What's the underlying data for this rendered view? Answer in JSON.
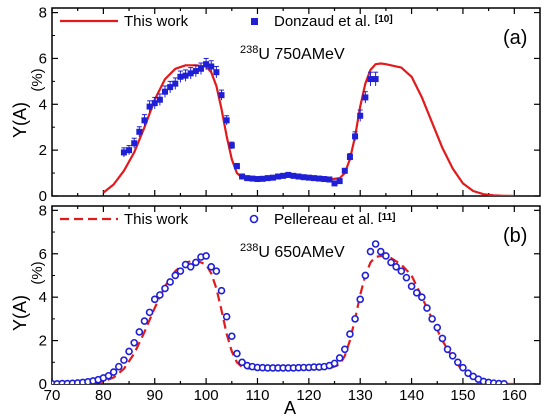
{
  "chart_data": [
    {
      "type": "scatter",
      "panel_label": "(a)",
      "nucleus_mass": "238",
      "nucleus_rest": "U 750AMeV",
      "xlabel": "A",
      "ylabel": "Y(A)",
      "ylabel_unit": "(%)",
      "xlim": [
        70,
        165
      ],
      "ylim": [
        0,
        8.2
      ],
      "yticks": [
        "0",
        "2",
        "4",
        "6",
        "8"
      ],
      "xticks": [],
      "legend_position": "top",
      "series": [
        {
          "name": "This work",
          "kind": "line",
          "style": "solid",
          "color": "#e31a1c",
          "x": [
            80,
            82,
            84,
            86,
            88,
            90,
            92,
            94,
            96,
            98,
            100,
            101,
            102,
            103,
            104,
            105,
            106,
            107,
            108,
            110,
            112,
            114,
            116,
            118,
            120,
            122,
            124,
            126,
            127,
            128,
            129,
            130,
            131,
            132,
            133,
            134,
            135,
            136,
            138,
            140,
            142,
            144,
            146,
            148,
            150,
            152,
            154,
            156,
            158,
            160
          ],
          "y": [
            0.15,
            0.5,
            1.1,
            1.9,
            3.0,
            4.2,
            5.1,
            5.55,
            5.7,
            5.7,
            5.65,
            5.4,
            4.8,
            3.8,
            2.6,
            1.6,
            1.0,
            0.8,
            0.72,
            0.7,
            0.72,
            0.78,
            0.85,
            0.82,
            0.78,
            0.74,
            0.72,
            0.78,
            1.0,
            1.6,
            2.6,
            3.9,
            4.9,
            5.5,
            5.75,
            5.78,
            5.75,
            5.7,
            5.6,
            5.2,
            4.3,
            3.2,
            2.1,
            1.2,
            0.55,
            0.22,
            0.08,
            0.03,
            0.01,
            0.0
          ]
        },
        {
          "name": "Donzaud et al.",
          "name_ref": "[10]",
          "kind": "points",
          "marker": "square",
          "color": "#1f1fd6",
          "x": [
            84,
            85,
            86,
            87,
            88,
            89,
            90,
            91,
            92,
            93,
            94,
            95,
            96,
            97,
            98,
            99,
            100,
            101,
            102,
            103,
            104,
            105,
            106,
            107,
            108,
            109,
            110,
            111,
            112,
            113,
            114,
            115,
            116,
            117,
            118,
            119,
            120,
            121,
            122,
            123,
            124,
            125,
            126,
            127,
            128,
            129,
            130,
            131,
            132,
            133
          ],
          "y": [
            1.9,
            2.0,
            2.3,
            2.8,
            3.3,
            3.9,
            4.05,
            4.2,
            4.55,
            4.75,
            4.9,
            5.2,
            5.25,
            5.35,
            5.45,
            5.55,
            5.75,
            5.65,
            5.4,
            4.4,
            3.3,
            2.2,
            1.3,
            0.85,
            0.78,
            0.76,
            0.74,
            0.75,
            0.78,
            0.8,
            0.85,
            0.88,
            0.92,
            0.88,
            0.85,
            0.82,
            0.8,
            0.78,
            0.76,
            0.74,
            0.72,
            0.55,
            0.65,
            1.1,
            1.7,
            2.6,
            3.5,
            4.3,
            5.1,
            5.1
          ],
          "err": [
            0.2,
            0.2,
            0.22,
            0.22,
            0.25,
            0.25,
            0.25,
            0.25,
            0.25,
            0.25,
            0.25,
            0.25,
            0.25,
            0.25,
            0.25,
            0.25,
            0.25,
            0.25,
            0.25,
            0.22,
            0.2,
            0.15,
            0.12,
            0.08,
            0.07,
            0.06,
            0.06,
            0.06,
            0.06,
            0.06,
            0.06,
            0.06,
            0.06,
            0.06,
            0.06,
            0.06,
            0.06,
            0.06,
            0.06,
            0.06,
            0.06,
            0.06,
            0.06,
            0.1,
            0.15,
            0.2,
            0.25,
            0.25,
            0.3,
            0.3
          ]
        }
      ]
    },
    {
      "type": "scatter",
      "panel_label": "(b)",
      "nucleus_mass": "238",
      "nucleus_rest": "U 650AMeV",
      "xlabel": "A",
      "ylabel": "Y(A)",
      "ylabel_unit": "(%)",
      "xlim": [
        70,
        165
      ],
      "ylim": [
        0,
        8.2
      ],
      "yticks": [
        "0",
        "2",
        "4",
        "6",
        "8"
      ],
      "xticks": [
        "70",
        "80",
        "90",
        "100",
        "110",
        "120",
        "130",
        "140",
        "150",
        "160"
      ],
      "legend_position": "top",
      "series": [
        {
          "name": "This work",
          "kind": "line",
          "style": "dashed",
          "color": "#e31a1c",
          "x": [
            70,
            74,
            78,
            80,
            82,
            84,
            86,
            88,
            90,
            92,
            94,
            96,
            98,
            100,
            101,
            102,
            103,
            104,
            105,
            106,
            107,
            108,
            110,
            112,
            116,
            120,
            124,
            126,
            127,
            128,
            129,
            130,
            131,
            132,
            133,
            134,
            136,
            138,
            140,
            142,
            144,
            146,
            148,
            150,
            152,
            154,
            156,
            158,
            160
          ],
          "y": [
            0.0,
            0.01,
            0.05,
            0.12,
            0.3,
            0.7,
            1.4,
            2.4,
            3.5,
            4.5,
            5.2,
            5.6,
            5.7,
            5.5,
            5.1,
            4.4,
            3.4,
            2.3,
            1.5,
            1.0,
            0.78,
            0.72,
            0.7,
            0.7,
            0.7,
            0.7,
            0.72,
            0.9,
            1.3,
            2.0,
            3.0,
            4.1,
            5.0,
            5.6,
            5.85,
            5.9,
            5.8,
            5.5,
            5.0,
            4.0,
            3.0,
            2.0,
            1.2,
            0.6,
            0.25,
            0.08,
            0.02,
            0.0,
            0.0
          ]
        },
        {
          "name": "Pellereau et al.",
          "name_ref": "[11]",
          "kind": "points",
          "marker": "circle-open",
          "color": "#1f1fd6",
          "x": [
            70,
            71,
            72,
            73,
            74,
            75,
            76,
            77,
            78,
            79,
            80,
            81,
            82,
            83,
            84,
            85,
            86,
            87,
            88,
            89,
            90,
            91,
            92,
            93,
            94,
            95,
            96,
            97,
            98,
            99,
            100,
            101,
            102,
            103,
            104,
            105,
            106,
            107,
            108,
            109,
            110,
            111,
            112,
            113,
            114,
            115,
            116,
            117,
            118,
            119,
            120,
            121,
            122,
            123,
            124,
            125,
            126,
            127,
            128,
            129,
            130,
            131,
            132,
            133,
            134,
            135,
            136,
            137,
            138,
            139,
            140,
            141,
            142,
            143,
            144,
            145,
            146,
            147,
            148,
            149,
            150,
            151,
            152,
            153,
            154,
            155,
            156,
            157,
            158
          ],
          "y": [
            0.01,
            0.01,
            0.02,
            0.02,
            0.03,
            0.05,
            0.07,
            0.1,
            0.14,
            0.2,
            0.28,
            0.38,
            0.55,
            0.8,
            1.1,
            1.5,
            1.9,
            2.4,
            2.9,
            3.3,
            3.9,
            4.1,
            4.4,
            4.7,
            5.0,
            5.2,
            5.5,
            5.4,
            5.6,
            5.85,
            5.9,
            5.4,
            5.2,
            4.3,
            3.1,
            2.2,
            1.4,
            1.0,
            0.85,
            0.8,
            0.76,
            0.75,
            0.74,
            0.74,
            0.74,
            0.74,
            0.74,
            0.74,
            0.75,
            0.76,
            0.76,
            0.78,
            0.78,
            0.8,
            0.85,
            0.95,
            1.2,
            1.6,
            2.3,
            3.0,
            3.9,
            5.0,
            6.1,
            6.45,
            6.1,
            5.9,
            5.6,
            5.4,
            5.2,
            4.9,
            4.5,
            4.2,
            4.0,
            3.5,
            3.0,
            2.6,
            2.1,
            1.6,
            1.3,
            1.0,
            0.75,
            0.5,
            0.35,
            0.22,
            0.12,
            0.07,
            0.04,
            0.02,
            0.01
          ]
        }
      ]
    }
  ]
}
